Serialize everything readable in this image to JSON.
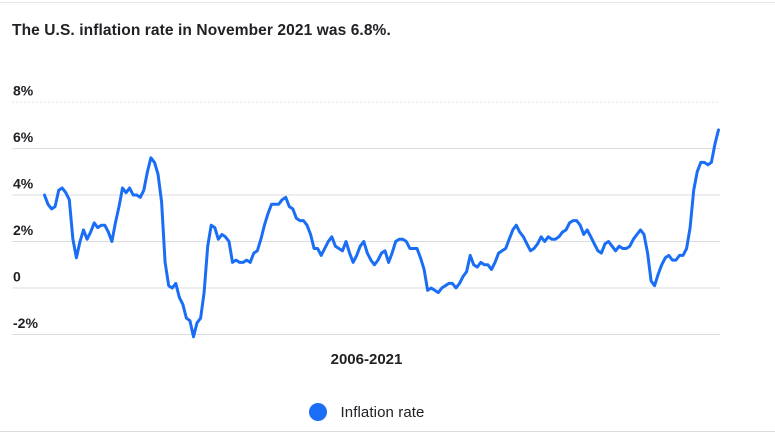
{
  "title": "The U.S. inflation rate in November 2021 was 6.8%.",
  "colors": {
    "line": "#1a6ef5",
    "grid": "#dadce0",
    "tick_text": "#202124",
    "title_text": "#202124"
  },
  "legend": {
    "marker": "circle",
    "label": "Inflation rate"
  },
  "chart_data": {
    "type": "line",
    "title": "The U.S. inflation rate in November 2021 was 6.8%.",
    "xlabel": "2006-2021",
    "ylabel": "",
    "x_unit": "month",
    "x_range": [
      "2006-01",
      "2021-11"
    ],
    "ylim": [
      -2.8,
      8.4
    ],
    "grid": "horizontal",
    "legend_position": "bottom",
    "y_ticks": [
      {
        "label": "8%",
        "value": 8,
        "style": "dotted"
      },
      {
        "label": "6%",
        "value": 6,
        "style": "solid"
      },
      {
        "label": "4%",
        "value": 4,
        "style": "solid"
      },
      {
        "label": "2%",
        "value": 2,
        "style": "solid"
      },
      {
        "label": "0",
        "value": 0,
        "style": "solid"
      },
      {
        "label": "-2%",
        "value": -2,
        "style": "solid"
      }
    ],
    "series": [
      {
        "name": "Inflation rate",
        "color": "#1a6ef5",
        "values": [
          4.0,
          3.6,
          3.4,
          3.5,
          4.2,
          4.3,
          4.1,
          3.8,
          2.1,
          1.3,
          2.0,
          2.5,
          2.1,
          2.4,
          2.8,
          2.6,
          2.7,
          2.7,
          2.4,
          2.0,
          2.8,
          3.5,
          4.3,
          4.1,
          4.3,
          4.0,
          4.0,
          3.9,
          4.2,
          5.0,
          5.6,
          5.4,
          4.9,
          3.7,
          1.1,
          0.1,
          0.0,
          0.2,
          -0.4,
          -0.7,
          -1.3,
          -1.4,
          -2.1,
          -1.5,
          -1.3,
          -0.2,
          1.8,
          2.7,
          2.6,
          2.1,
          2.3,
          2.2,
          2.0,
          1.1,
          1.2,
          1.1,
          1.1,
          1.2,
          1.1,
          1.5,
          1.6,
          2.1,
          2.7,
          3.2,
          3.6,
          3.6,
          3.6,
          3.8,
          3.9,
          3.5,
          3.4,
          3.0,
          2.9,
          2.9,
          2.7,
          2.3,
          1.7,
          1.7,
          1.4,
          1.7,
          2.0,
          2.2,
          1.8,
          1.7,
          1.6,
          2.0,
          1.5,
          1.1,
          1.4,
          1.8,
          2.0,
          1.5,
          1.2,
          1.0,
          1.2,
          1.5,
          1.6,
          1.1,
          1.5,
          2.0,
          2.1,
          2.1,
          2.0,
          1.7,
          1.7,
          1.7,
          1.3,
          0.8,
          -0.1,
          0.0,
          -0.1,
          -0.2,
          0.0,
          0.1,
          0.2,
          0.2,
          0.0,
          0.2,
          0.5,
          0.7,
          1.4,
          1.0,
          0.9,
          1.1,
          1.0,
          1.0,
          0.8,
          1.1,
          1.5,
          1.6,
          1.7,
          2.1,
          2.5,
          2.7,
          2.4,
          2.2,
          1.9,
          1.6,
          1.7,
          1.9,
          2.2,
          2.0,
          2.2,
          2.1,
          2.1,
          2.2,
          2.4,
          2.5,
          2.8,
          2.9,
          2.9,
          2.7,
          2.3,
          2.5,
          2.2,
          1.9,
          1.6,
          1.5,
          1.9,
          2.0,
          1.8,
          1.6,
          1.8,
          1.7,
          1.7,
          1.8,
          2.1,
          2.3,
          2.5,
          2.3,
          1.5,
          0.3,
          0.1,
          0.6,
          1.0,
          1.3,
          1.4,
          1.2,
          1.2,
          1.4,
          1.4,
          1.7,
          2.6,
          4.2,
          5.0,
          5.4,
          5.4,
          5.3,
          5.4,
          6.2,
          6.8
        ]
      }
    ]
  }
}
